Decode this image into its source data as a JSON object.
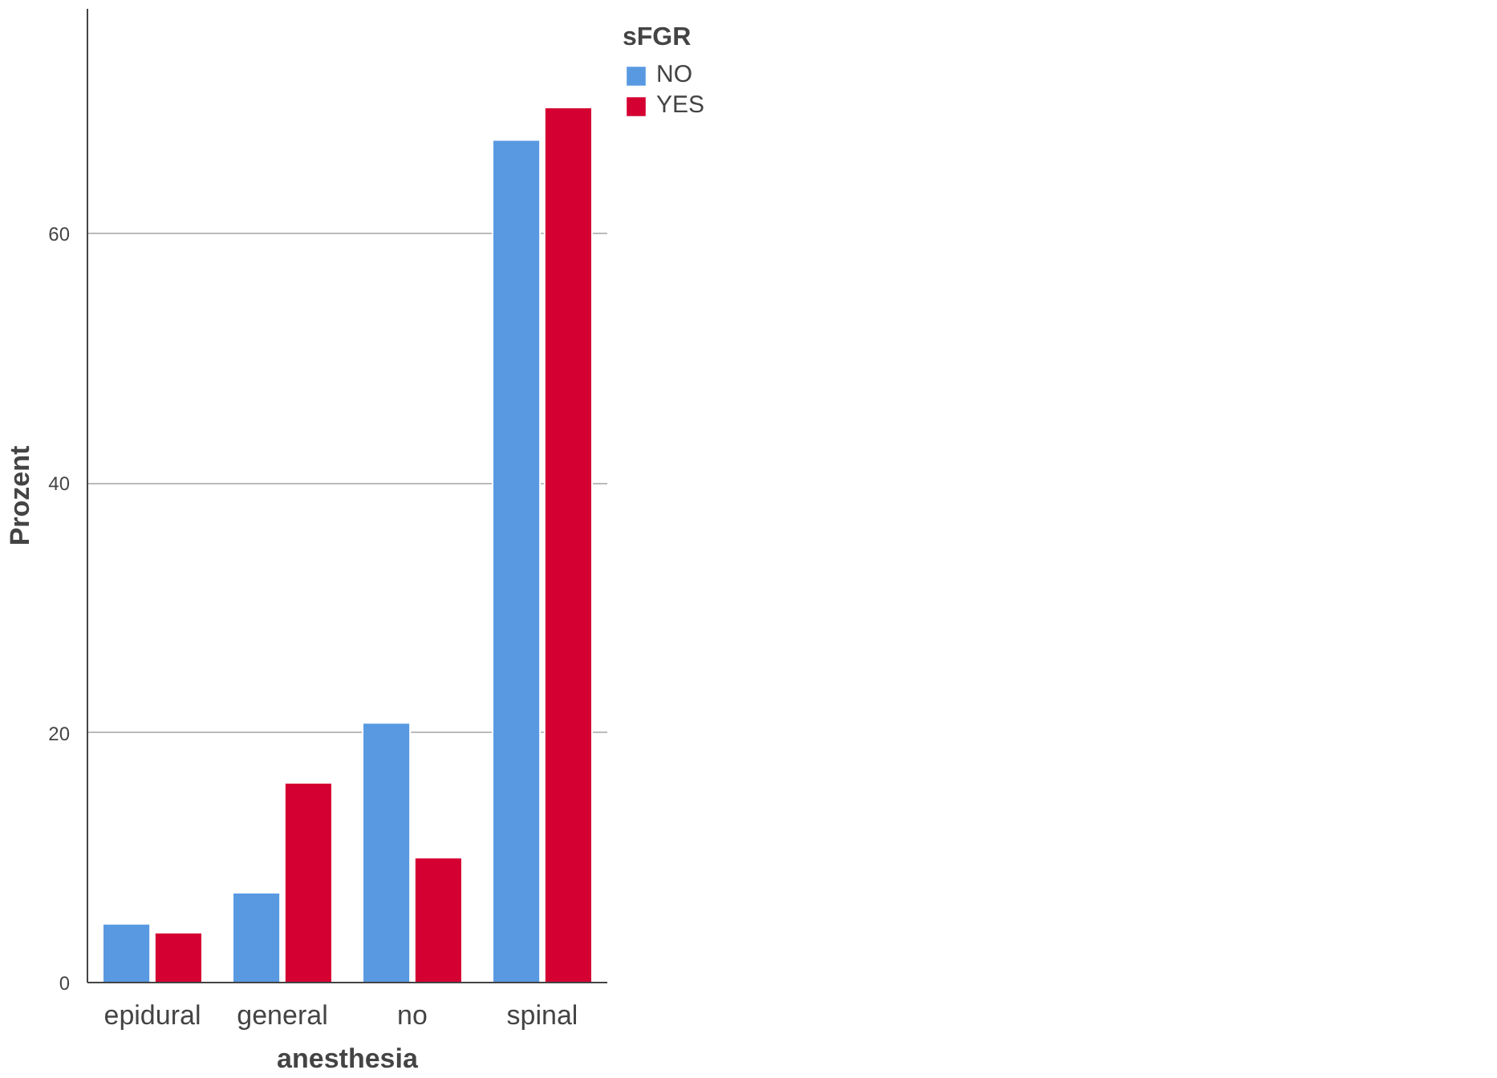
{
  "chart_data": {
    "type": "bar",
    "xlabel": "anesthesia",
    "ylabel": "Prozent",
    "legend_title": "sFGR",
    "categories": [
      "epidural",
      "general",
      "no",
      "spinal"
    ],
    "series": [
      {
        "name": "NO",
        "color": "#5899e2",
        "values": [
          4.7,
          7.2,
          20.8,
          67.5
        ]
      },
      {
        "name": "YES",
        "color": "#d50032",
        "values": [
          4.0,
          16.0,
          10.0,
          70.1
        ]
      }
    ],
    "ylim": [
      0,
      78
    ],
    "yticks": [
      0,
      20,
      40,
      60
    ],
    "grid": "y",
    "legend": "top right"
  }
}
